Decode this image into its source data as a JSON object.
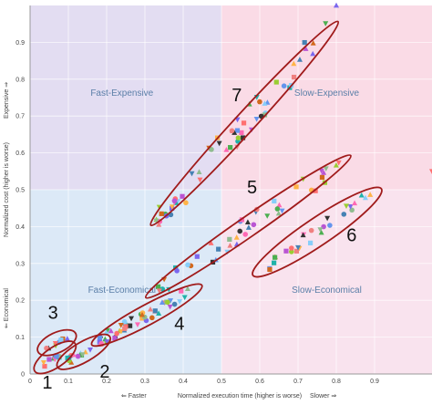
{
  "chart_data": {
    "type": "scatter",
    "xlim": [
      0,
      1.05
    ],
    "ylim": [
      0,
      1.0
    ],
    "x_ticks": [
      "0",
      "0.1",
      "0.2",
      "0.3",
      "0.4",
      "0.5",
      "0.6",
      "0.7",
      "0.8",
      "0.9"
    ],
    "y_ticks": [
      "0",
      "0.1",
      "0.2",
      "0.3",
      "0.4",
      "0.5",
      "0.6",
      "0.7",
      "0.8",
      "0.9"
    ],
    "xlabel_left": "⇐ Faster",
    "xlabel": "Normalized execution time (higher is worse)",
    "xlabel_right": "Slower ⇒",
    "ylabel_bottom": "⇐ Economical",
    "ylabel": "Normalized cost (higher is worse)",
    "ylabel_top": "Expensive ⇒",
    "grid": true,
    "quadrant_split": {
      "x": 0.5,
      "y": 0.5
    },
    "quadrants": [
      {
        "label": "Fast-Expensive",
        "x": 0.24,
        "y": 0.755,
        "color": "#e3ddf2"
      },
      {
        "label": "Slow-Expensive",
        "x": 0.775,
        "y": 0.755,
        "color": "#fadbe6"
      },
      {
        "label": "Fast-Economical",
        "x": 0.24,
        "y": 0.22,
        "color": "#dce9f7"
      },
      {
        "label": "Slow-Economical",
        "x": 0.775,
        "y": 0.22,
        "color": "#f9e3ee"
      }
    ],
    "clusters": [
      {
        "name": "1",
        "x_range": [
          0.03,
          0.1
        ],
        "y_range": [
          0.02,
          0.07
        ],
        "count": 10
      },
      {
        "name": "2",
        "x_range": [
          0.09,
          0.19
        ],
        "y_range": [
          0.03,
          0.09
        ],
        "count": 14
      },
      {
        "name": "3",
        "x_range": [
          0.04,
          0.1
        ],
        "y_range": [
          0.07,
          0.1
        ],
        "count": 8
      },
      {
        "name": "4",
        "x_range": [
          0.18,
          0.43
        ],
        "y_range": [
          0.09,
          0.23
        ],
        "count": 45
      },
      {
        "name": "5",
        "x_range": [
          0.32,
          0.82
        ],
        "y_range": [
          0.22,
          0.58
        ],
        "count": 45
      },
      {
        "name": "6",
        "x_range": [
          0.6,
          0.9
        ],
        "y_range": [
          0.28,
          0.49
        ],
        "count": 28
      },
      {
        "name": "7",
        "x_range": [
          0.33,
          0.79
        ],
        "y_range": [
          0.42,
          0.94
        ],
        "count": 60
      }
    ],
    "extra_points": [
      {
        "x": 0.8,
        "y": 1.0
      },
      {
        "x": 1.05,
        "y": 0.55
      }
    ],
    "marker_colors": [
      "#7b68ee",
      "#ff6f6f",
      "#4caf50",
      "#ffb347",
      "#4682b4",
      "#ba55d3",
      "#20b2aa",
      "#ff69b4",
      "#8fbc8f",
      "#6495ed",
      "#d2691e",
      "#333333",
      "#9acd32",
      "#f08080",
      "#87cefa"
    ]
  }
}
